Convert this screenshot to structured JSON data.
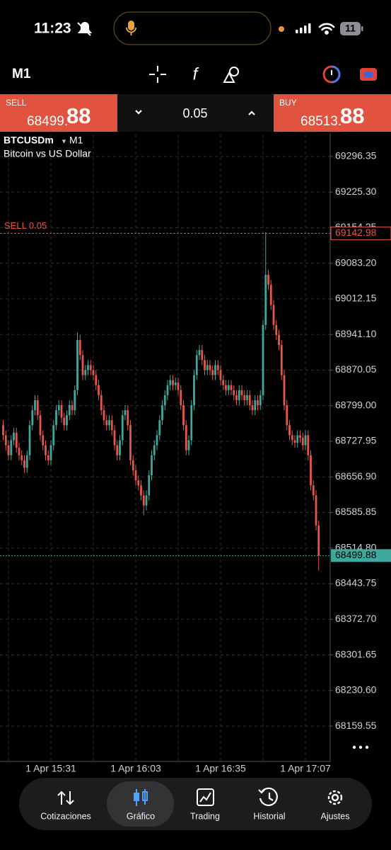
{
  "status_bar": {
    "time": "11:23",
    "battery": "11"
  },
  "toolbar": {
    "timeframe": "M1"
  },
  "trade_panel": {
    "sell_label": "SELL",
    "sell_price_main": "68499.",
    "sell_price_pips": "88",
    "volume": "0.05",
    "buy_label": "BUY",
    "buy_price_main": "68513.",
    "buy_price_pips": "88"
  },
  "chart_data": {
    "type": "candlestick",
    "symbol": "BTCUSDm",
    "timeframe": "M1",
    "description": "Bitcoin vs US Dollar",
    "categories": [
      null,
      null,
      null,
      null,
      null,
      null,
      null,
      null,
      null,
      null,
      null,
      null,
      null,
      null,
      null,
      null,
      null,
      null,
      "1 Apr 15:31",
      null,
      null,
      null,
      null,
      null,
      null,
      null,
      null,
      null,
      null,
      null,
      null,
      null,
      null,
      null,
      null,
      null,
      null,
      null,
      null,
      null,
      null,
      null,
      null,
      null,
      null,
      null,
      null,
      null,
      null,
      null,
      "1 Apr 16:03",
      null,
      null,
      null,
      null,
      null,
      null,
      null,
      null,
      null,
      null,
      null,
      null,
      null,
      null,
      null,
      null,
      null,
      null,
      null,
      null,
      null,
      null,
      null,
      null,
      null,
      null,
      null,
      null,
      null,
      null,
      null,
      "1 Apr 16:35",
      null,
      null,
      null,
      null,
      null,
      null,
      null,
      null,
      null,
      null,
      null,
      null,
      null,
      null,
      null,
      null,
      null,
      null,
      null,
      null,
      null,
      null,
      null,
      null,
      null,
      null,
      null,
      null,
      null,
      null,
      null,
      "1 Apr 17:07",
      null,
      null,
      null,
      null,
      null
    ],
    "open": [
      68760,
      68740,
      68720,
      68700,
      68730,
      68745,
      68715,
      68700,
      68690,
      68675,
      68700,
      68760,
      68790,
      68810,
      68780,
      68740,
      68720,
      68700,
      68690,
      68720,
      68760,
      68790,
      68800,
      68775,
      68760,
      68780,
      68800,
      68790,
      68830,
      68930,
      68900,
      68860,
      68870,
      68880,
      68870,
      68860,
      68840,
      68820,
      68790,
      68770,
      68760,
      68770,
      68750,
      68720,
      68700,
      68730,
      68780,
      68790,
      68760,
      68690,
      68670,
      68650,
      68640,
      68620,
      68600,
      68620,
      68660,
      68700,
      68720,
      68740,
      68770,
      68800,
      68820,
      68840,
      68850,
      68840,
      68845,
      68830,
      68800,
      68760,
      68710,
      68730,
      68800,
      68860,
      68900,
      68910,
      68890,
      68870,
      68880,
      68870,
      68860,
      68880,
      68870,
      68850,
      68840,
      68830,
      68840,
      68830,
      68820,
      68810,
      68830,
      68820,
      68810,
      68820,
      68800,
      68790,
      68810,
      68800,
      68820,
      68960,
      69060,
      69040,
      69000,
      68960,
      68940,
      68920,
      68860,
      68800,
      68760,
      68740,
      68730,
      68725,
      68740,
      68735,
      68720,
      68740,
      68700,
      68640,
      68620,
      68560
    ],
    "high": [
      68770,
      68750,
      68730,
      68740,
      68755,
      68755,
      68725,
      68710,
      68700,
      68710,
      68770,
      68800,
      68820,
      68820,
      68790,
      68750,
      68730,
      68710,
      68730,
      68770,
      68800,
      68810,
      68810,
      68785,
      68790,
      68810,
      68810,
      68840,
      68945,
      68940,
      68910,
      68880,
      68890,
      68890,
      68880,
      68870,
      68850,
      68830,
      68800,
      68780,
      68780,
      68780,
      68760,
      68730,
      68740,
      68790,
      68800,
      68800,
      68770,
      68700,
      68680,
      68660,
      68650,
      68630,
      68630,
      68670,
      68710,
      68730,
      68750,
      68780,
      68810,
      68830,
      68850,
      68860,
      68860,
      68855,
      68855,
      68840,
      68810,
      68770,
      68740,
      68810,
      68870,
      68910,
      68920,
      68920,
      68900,
      68890,
      68890,
      68880,
      68890,
      68890,
      68880,
      68860,
      68850,
      68850,
      68850,
      68840,
      68830,
      68840,
      68840,
      68830,
      68830,
      68830,
      68810,
      68820,
      68820,
      68830,
      68970,
      69145,
      69070,
      69050,
      69010,
      68970,
      68950,
      68930,
      68870,
      68810,
      68770,
      68750,
      68740,
      68750,
      68750,
      68745,
      68750,
      68750,
      68710,
      68650,
      68630,
      68570
    ],
    "low": [
      68730,
      68710,
      68690,
      68690,
      68720,
      68705,
      68690,
      68680,
      68665,
      68665,
      68690,
      68750,
      68780,
      68770,
      68730,
      68710,
      68690,
      68680,
      68680,
      68710,
      68750,
      68780,
      68765,
      68750,
      68750,
      68770,
      68780,
      68780,
      68820,
      68890,
      68850,
      68850,
      68860,
      68860,
      68850,
      68830,
      68810,
      68780,
      68760,
      68750,
      68750,
      68740,
      68710,
      68690,
      68690,
      68720,
      68770,
      68750,
      68680,
      68660,
      68640,
      68630,
      68610,
      68580,
      68590,
      68610,
      68650,
      68690,
      68710,
      68730,
      68760,
      68790,
      68810,
      68830,
      68830,
      68830,
      68820,
      68790,
      68750,
      68700,
      68700,
      68720,
      68790,
      68850,
      68890,
      68880,
      68860,
      68860,
      68860,
      68850,
      68850,
      68860,
      68840,
      68830,
      68820,
      68820,
      68820,
      68810,
      68800,
      68800,
      68810,
      68800,
      68800,
      68790,
      68780,
      68780,
      68790,
      68790,
      68810,
      68950,
      69030,
      68990,
      68950,
      68930,
      68910,
      68850,
      68790,
      68750,
      68730,
      68720,
      68715,
      68715,
      68725,
      68710,
      68710,
      68690,
      68630,
      68610,
      68550,
      68470
    ],
    "close": [
      68740,
      68720,
      68700,
      68730,
      68745,
      68715,
      68700,
      68690,
      68675,
      68700,
      68760,
      68790,
      68810,
      68780,
      68740,
      68720,
      68700,
      68690,
      68720,
      68760,
      68790,
      68800,
      68775,
      68760,
      68780,
      68800,
      68790,
      68830,
      68930,
      68900,
      68860,
      68870,
      68880,
      68870,
      68860,
      68840,
      68820,
      68790,
      68770,
      68760,
      68770,
      68750,
      68720,
      68700,
      68730,
      68780,
      68790,
      68760,
      68690,
      68670,
      68650,
      68640,
      68620,
      68600,
      68620,
      68660,
      68700,
      68720,
      68740,
      68770,
      68800,
      68820,
      68840,
      68850,
      68840,
      68845,
      68830,
      68800,
      68760,
      68710,
      68730,
      68800,
      68860,
      68900,
      68910,
      68890,
      68870,
      68880,
      68870,
      68860,
      68880,
      68870,
      68850,
      68840,
      68830,
      68840,
      68830,
      68820,
      68810,
      68830,
      68820,
      68810,
      68820,
      68800,
      68790,
      68810,
      68800,
      68820,
      68960,
      69060,
      69040,
      69000,
      68960,
      68940,
      68920,
      68860,
      68800,
      68760,
      68740,
      68730,
      68725,
      68740,
      68735,
      68720,
      68740,
      68700,
      68640,
      68620,
      68560,
      68500
    ],
    "up_color": "#3fa79c",
    "down_color": "#e4574a",
    "grid": true,
    "ylim": [
      68089,
      69340
    ],
    "yticks": [
      69296.35,
      {
        "value": 69225.3,
        "label": "69225.30"
      },
      69154.25,
      {
        "value": 69083.2,
        "label": "69083.20"
      },
      69012.15,
      {
        "value": 68941.1,
        "label": "68941.10"
      },
      68870.05,
      {
        "value": 68799,
        "label": "68799.00"
      },
      68727.95,
      {
        "value": 68656.9,
        "label": "68656.90"
      },
      68585.85,
      {
        "value": 68514.8,
        "label": "68514.80"
      },
      68443.75,
      {
        "value": 68372.7,
        "label": "68372.70"
      },
      68301.65,
      {
        "value": 68230.6,
        "label": "68230.60"
      },
      68159.55
    ],
    "position_line": {
      "label": "SELL 0.05",
      "value": 69142.98,
      "color": "#e4574a"
    },
    "bid_line": {
      "value": 68499.88,
      "color": "#3fa79c"
    }
  },
  "nav": [
    {
      "label": "Cotizaciones"
    },
    {
      "label": "Gráfico",
      "active": true
    },
    {
      "label": "Trading"
    },
    {
      "label": "Historial"
    },
    {
      "label": "Ajustes"
    }
  ]
}
